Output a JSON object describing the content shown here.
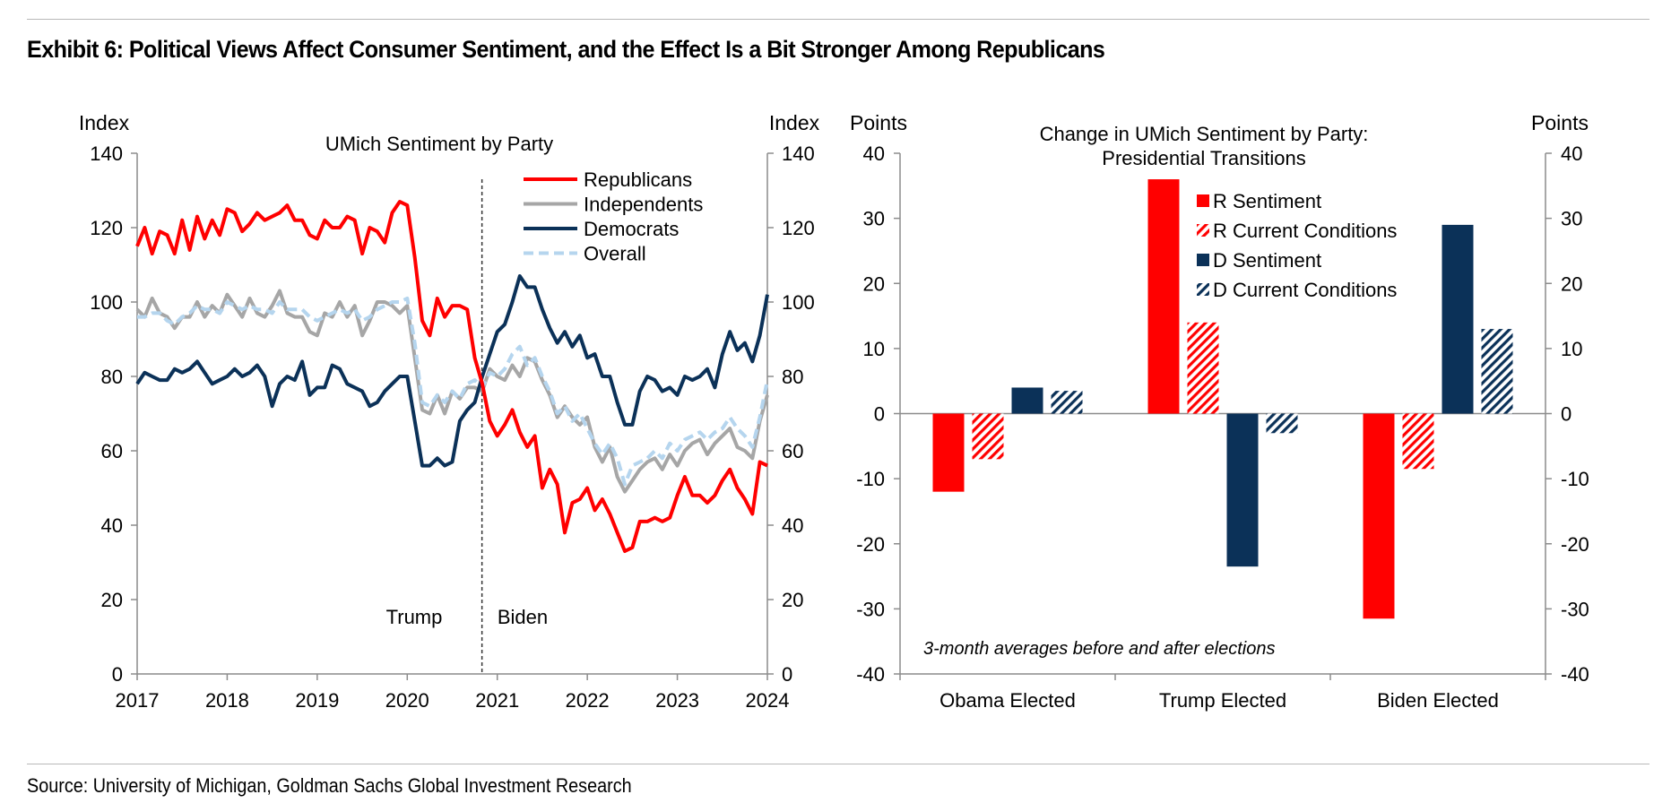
{
  "exhibit_title": "Exhibit 6: Political Views Affect Consumer Sentiment, and the Effect Is a Bit Stronger Among Republicans",
  "source": "Source: University of Michigan, Goldman Sachs Global Investment Research",
  "colors": {
    "republicans": "#ff0000",
    "independents": "#a6a6a6",
    "democrats": "#0b3158",
    "overall": "#b5d5ee"
  },
  "chart_data": [
    {
      "type": "line",
      "title": "UMich Sentiment by Party",
      "y_left_label": "Index",
      "y_right_label": "Index",
      "ylim": [
        0,
        140
      ],
      "y_ticks": [
        "0",
        "20",
        "40",
        "60",
        "80",
        "100",
        "120",
        "140"
      ],
      "xlim": [
        2017,
        2024
      ],
      "x_ticks": [
        "2017",
        "2018",
        "2019",
        "2020",
        "2021",
        "2022",
        "2023",
        "2024"
      ],
      "annotations": {
        "divider_x": 2020.83,
        "left_label": "Trump",
        "right_label": "Biden"
      },
      "legend_position": "top-right",
      "x_step_months": 1,
      "series": [
        {
          "name": "Republicans",
          "color": "#ff0000",
          "dash": false,
          "values": [
            115,
            120,
            113,
            119,
            118,
            113,
            122,
            114,
            123,
            117,
            122,
            118,
            125,
            124,
            119,
            121,
            124,
            122,
            123,
            124,
            126,
            122,
            122,
            118,
            117,
            122,
            120,
            120,
            123,
            122,
            113,
            120,
            119,
            116,
            124,
            127,
            126,
            112,
            95,
            91,
            101,
            96,
            99,
            99,
            98,
            85,
            78,
            68,
            64,
            67,
            71,
            65,
            61,
            64,
            50,
            55,
            51,
            38,
            46,
            47,
            50,
            44,
            47,
            43,
            38,
            33,
            34,
            41,
            41,
            42,
            41,
            42,
            48,
            53,
            48,
            48,
            46,
            48,
            52,
            55,
            50,
            47,
            43,
            57,
            56
          ],
          "label": ""
        },
        {
          "name": "Independents",
          "color": "#a6a6a6",
          "dash": false,
          "values": [
            98,
            96,
            101,
            97,
            96,
            93,
            96,
            96,
            100,
            96,
            99,
            97,
            102,
            99,
            96,
            101,
            97,
            96,
            99,
            103,
            97,
            96,
            96,
            92,
            91,
            97,
            96,
            100,
            96,
            99,
            91,
            95,
            100,
            100,
            99,
            97,
            99,
            85,
            71,
            70,
            75,
            70,
            76,
            74,
            77,
            77,
            76,
            82,
            80,
            79,
            83,
            80,
            85,
            84,
            79,
            75,
            69,
            72,
            69,
            67,
            69,
            61,
            57,
            61,
            53,
            49,
            52,
            55,
            57,
            58,
            55,
            59,
            56,
            60,
            62,
            63,
            59,
            62,
            64,
            66,
            61,
            60,
            58,
            68,
            75
          ],
          "label": ""
        },
        {
          "name": "Democrats",
          "color": "#0b3158",
          "dash": false,
          "values": [
            78,
            81,
            80,
            79,
            79,
            82,
            81,
            82,
            84,
            81,
            78,
            79,
            80,
            82,
            80,
            81,
            83,
            80,
            72,
            78,
            80,
            79,
            84,
            75,
            77,
            77,
            83,
            82,
            78,
            77,
            76,
            72,
            73,
            76,
            78,
            80,
            80,
            68,
            56,
            56,
            58,
            56,
            57,
            68,
            71,
            73,
            80,
            86,
            92,
            94,
            100,
            107,
            104,
            104,
            98,
            93,
            89,
            92,
            88,
            91,
            85,
            86,
            80,
            80,
            73,
            67,
            67,
            76,
            80,
            79,
            76,
            77,
            75,
            80,
            79,
            80,
            82,
            77,
            86,
            92,
            87,
            89,
            84,
            91,
            102
          ],
          "label": ""
        },
        {
          "name": "Overall",
          "color": "#b5d5ee",
          "dash": true,
          "values": [
            96,
            96,
            97,
            97,
            95,
            94,
            96,
            97,
            99,
            98,
            98,
            97,
            100,
            99,
            98,
            99,
            98,
            98,
            97,
            100,
            98,
            98,
            98,
            96,
            95,
            96,
            97,
            98,
            97,
            98,
            95,
            96,
            98,
            99,
            100,
            100,
            101,
            89,
            73,
            72,
            75,
            73,
            76,
            74,
            78,
            79,
            77,
            81,
            80,
            82,
            86,
            88,
            83,
            85,
            80,
            76,
            70,
            72,
            68,
            70,
            66,
            62,
            59,
            62,
            58,
            51,
            56,
            57,
            58,
            60,
            58,
            62,
            60,
            63,
            64,
            65,
            63,
            65,
            66,
            69,
            66,
            64,
            61,
            69,
            79
          ],
          "label": ""
        }
      ]
    },
    {
      "type": "bar",
      "title_lines": [
        "Change in UMich Sentiment by Party:",
        "Presidential Transitions"
      ],
      "y_left_label": "Points",
      "y_right_label": "Points",
      "ylim": [
        -40,
        40
      ],
      "y_ticks": [
        "-40",
        "-30",
        "-20",
        "-10",
        "0",
        "10",
        "20",
        "30",
        "40"
      ],
      "categories": [
        "Obama Elected",
        "Trump Elected",
        "Biden Elected"
      ],
      "note": "3-month averages before and after elections",
      "legend_position": "top-center",
      "series": [
        {
          "name": "R Sentiment",
          "color": "#ff0000",
          "hatched": false,
          "values": [
            -12,
            36,
            -31.5
          ]
        },
        {
          "name": "R Current Conditions",
          "color": "#ff0000",
          "hatched": true,
          "values": [
            -7,
            14,
            -8.5
          ]
        },
        {
          "name": "D Sentiment",
          "color": "#0b3158",
          "hatched": false,
          "values": [
            4,
            -23.5,
            29
          ]
        },
        {
          "name": "D Current Conditions",
          "color": "#0b3158",
          "hatched": true,
          "values": [
            3.5,
            -3,
            13
          ]
        }
      ]
    }
  ]
}
